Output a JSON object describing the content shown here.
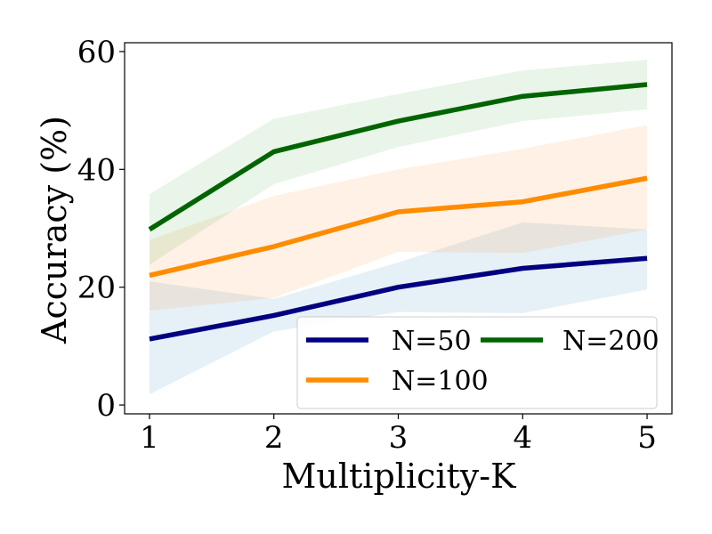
{
  "chart_data": {
    "type": "line",
    "title": "",
    "xlabel": "Multiplicity-K",
    "ylabel": "Accuracy (%)",
    "x": [
      1,
      2,
      3,
      4,
      5
    ],
    "xlim": [
      0.8,
      5.2
    ],
    "ylim": [
      -1.5,
      61.5
    ],
    "xticks": [
      1,
      2,
      3,
      4,
      5
    ],
    "yticks": [
      0,
      20,
      40,
      60
    ],
    "grid": false,
    "legend_position": "lower-right",
    "series": [
      {
        "name": "N=50",
        "color": "#000080",
        "band_color": "#1f77b4",
        "values": [
          11.2,
          15.2,
          20.0,
          23.2,
          24.9
        ],
        "lower": [
          1.8,
          12.5,
          15.8,
          15.6,
          19.6
        ],
        "upper": [
          21.0,
          18.0,
          24.2,
          31.0,
          29.8
        ]
      },
      {
        "name": "N=100",
        "color": "#ff8c00",
        "band_color": "#ff7f0e",
        "values": [
          22.0,
          26.9,
          32.8,
          34.5,
          38.5
        ],
        "lower": [
          16.0,
          18.2,
          26.0,
          25.8,
          29.8
        ],
        "upper": [
          28.0,
          35.5,
          40.0,
          43.5,
          47.5
        ]
      },
      {
        "name": "N=200",
        "color": "#006400",
        "band_color": "#2ca02c",
        "values": [
          29.8,
          43.0,
          48.2,
          52.4,
          54.4
        ],
        "lower": [
          23.8,
          37.5,
          43.8,
          48.2,
          50.2
        ],
        "upper": [
          35.8,
          48.6,
          52.8,
          56.8,
          58.6
        ]
      }
    ]
  }
}
